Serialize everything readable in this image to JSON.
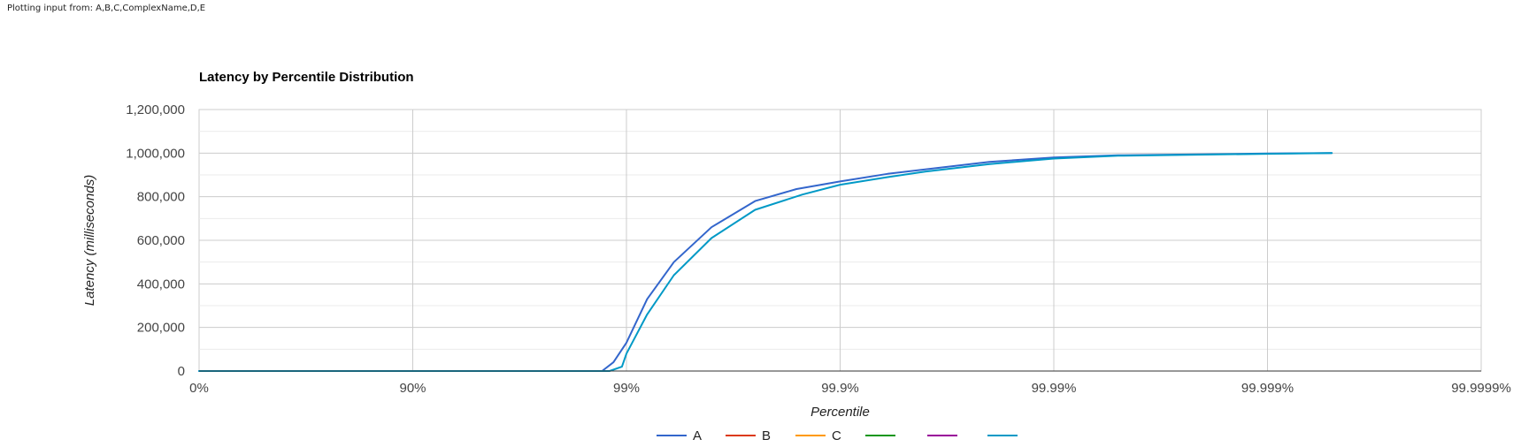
{
  "header": {
    "source_text": "Plotting input from: A,B,C,ComplexName,D,E"
  },
  "chart_data": {
    "type": "line",
    "title": "Latency by Percentile Distribution",
    "xlabel": "Percentile",
    "ylabel": "Latency (milliseconds)",
    "x_scale": "reciprocal_log10",
    "x_ticks": [
      "0%",
      "90%",
      "99%",
      "99.9%",
      "99.99%",
      "99.999%",
      "99.9999%"
    ],
    "x_tick_values": [
      0,
      90,
      99,
      99.9,
      99.99,
      99.999,
      99.9999
    ],
    "xlim": [
      0,
      99.9999
    ],
    "ylim": [
      0,
      1200000
    ],
    "y_ticks": [
      "0",
      "200,000",
      "400,000",
      "600,000",
      "800,000",
      "1,000,000",
      "1,200,000"
    ],
    "y_tick_values": [
      0,
      200000,
      400000,
      600000,
      800000,
      1000000,
      1200000
    ],
    "grid": true,
    "legend_position": "bottom",
    "series": [
      {
        "name": "A",
        "color": "#3366cc",
        "x": [
          0,
          90,
          98.5,
          98.7,
          98.85,
          99,
          99.2,
          99.4,
          99.6,
          99.75,
          99.84,
          99.9,
          99.94,
          99.96,
          99.98,
          99.99,
          99.995,
          99.999,
          99.9995
        ],
        "y": [
          0,
          0,
          0,
          0,
          40000,
          130000,
          330000,
          500000,
          660000,
          780000,
          835000,
          870000,
          905000,
          925000,
          960000,
          980000,
          990000,
          998000,
          1000000
        ]
      },
      {
        "name": "B",
        "color": "#dc3912",
        "x": [],
        "y": []
      },
      {
        "name": "C",
        "color": "#ff9900",
        "x": [],
        "y": []
      },
      {
        "name": "",
        "color": "#109618",
        "x": [],
        "y": []
      },
      {
        "name": "",
        "color": "#990099",
        "x": [],
        "y": []
      },
      {
        "name": "",
        "color": "#0099c6",
        "x": [
          0,
          90,
          98.5,
          98.8,
          98.95,
          99,
          99.2,
          99.4,
          99.6,
          99.75,
          99.85,
          99.9,
          99.94,
          99.96,
          99.98,
          99.99,
          99.995,
          99.999,
          99.9995
        ],
        "y": [
          0,
          0,
          0,
          0,
          20000,
          80000,
          260000,
          440000,
          610000,
          740000,
          810000,
          855000,
          890000,
          915000,
          950000,
          975000,
          988000,
          997000,
          1000000
        ]
      }
    ]
  }
}
